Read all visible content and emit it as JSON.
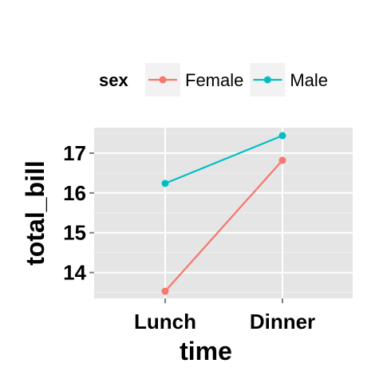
{
  "chart_data": {
    "type": "line",
    "categories": [
      "Lunch",
      "Dinner"
    ],
    "series": [
      {
        "name": "Female",
        "values": [
          13.53,
          16.82
        ],
        "color": "#F8766D"
      },
      {
        "name": "Male",
        "values": [
          16.24,
          17.44
        ],
        "color": "#00BFC4"
      }
    ],
    "xlabel": "time",
    "ylabel": "total_bill",
    "ylim": [
      13.35,
      17.64
    ],
    "yticks": [
      14,
      15,
      16,
      17
    ],
    "grid": true,
    "legend": {
      "title": "sex",
      "position": "top"
    },
    "panel_color": "#E5E5E5"
  }
}
